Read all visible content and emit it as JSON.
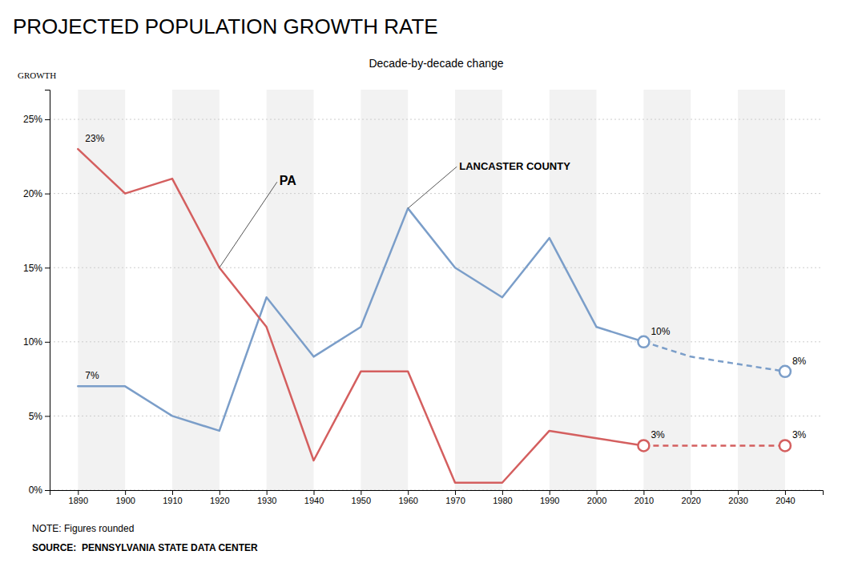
{
  "chart_data": {
    "type": "line",
    "title": "PROJECTED POPULATION GROWTH RATE",
    "subtitle": "Decade-by-decade change",
    "ylabel": "GROWTH",
    "note": "NOTE: Figures rounded",
    "source": "SOURCE:  PENNSYLVANIA STATE DATA CENTER",
    "x": [
      1890,
      1900,
      1910,
      1920,
      1930,
      1940,
      1950,
      1960,
      1970,
      1980,
      1990,
      2000,
      2010,
      2020,
      2030,
      2040
    ],
    "series": [
      {
        "name": "LANCASTER COUNTY",
        "color": "#7b9ec9",
        "line_style": "solid",
        "values": [
          7,
          7,
          5,
          4,
          13,
          9,
          11,
          19,
          15,
          13,
          17,
          11,
          10,
          null,
          null,
          null
        ]
      },
      {
        "color": "#7b9ec9",
        "line_style": "dashed",
        "values": [
          null,
          null,
          null,
          null,
          null,
          null,
          null,
          null,
          null,
          null,
          null,
          null,
          10,
          9,
          8.5,
          8
        ]
      },
      {
        "name": "PA",
        "color": "#d45f5f",
        "line_style": "solid",
        "values": [
          23,
          20,
          21,
          15,
          11,
          2,
          8,
          8,
          0.5,
          0.5,
          4,
          3.5,
          3,
          null,
          null,
          null
        ]
      },
      {
        "color": "#d45f5f",
        "line_style": "dashed",
        "values": [
          null,
          null,
          null,
          null,
          null,
          null,
          null,
          null,
          null,
          null,
          null,
          null,
          3,
          3,
          3,
          3
        ]
      }
    ],
    "annotations": [
      {
        "text": "23%",
        "x": 1890,
        "y": 23
      },
      {
        "text": "7%",
        "x": 1890,
        "y": 7
      },
      {
        "text": "10%",
        "x": 2010,
        "y": 10
      },
      {
        "text": "3%",
        "x": 2010,
        "y": 3
      },
      {
        "text": "8%",
        "x": 2040,
        "y": 8
      },
      {
        "text": "3%",
        "x": 2040,
        "y": 3
      }
    ],
    "xlim": [
      1884,
      2048
    ],
    "xticks": [
      1890,
      1900,
      1910,
      1920,
      1930,
      1940,
      1950,
      1960,
      1970,
      1980,
      1990,
      2000,
      2010,
      2020,
      2030,
      2040
    ],
    "ylim": [
      0,
      27
    ],
    "yticks": [
      {
        "value": 0,
        "label": "0%"
      },
      {
        "value": 5,
        "label": "5%"
      },
      {
        "value": 10,
        "label": "10%"
      },
      {
        "value": 15,
        "label": "15%"
      },
      {
        "value": 20,
        "label": "20%"
      },
      {
        "value": 25,
        "label": "25%"
      }
    ],
    "grid": true
  }
}
